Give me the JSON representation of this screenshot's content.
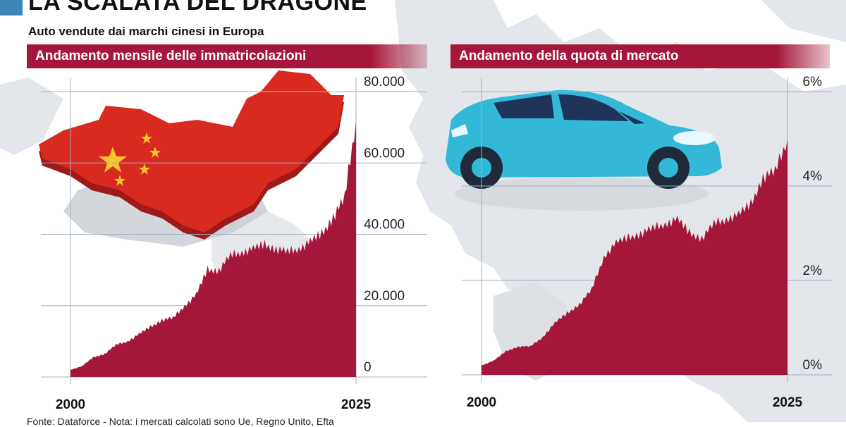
{
  "title": "LA SCALATA DEL DRAGONE",
  "subtitle": "Auto vendute dai marchi cinesi in Europa",
  "source": "Fonte: Dataforce - Nota: i mercati calcolati sono Ue, Regno Unito, Efta",
  "colors": {
    "area": "#a5173a",
    "header": "#a5173a",
    "marker": "#3d87b8",
    "map": "#e3e6ea",
    "car": "#33b8d8"
  },
  "chart_data": [
    {
      "type": "area",
      "title": "Andamento mensile delle immatricolazioni",
      "xlabel": "",
      "ylabel": "",
      "x_ticks": [
        "2000",
        "2025"
      ],
      "y_ticks": [
        "0",
        "20.000",
        "40.000",
        "60.000",
        "80.000"
      ],
      "ylim": [
        0,
        80000
      ],
      "grid": true,
      "illustration": "china-map-icon",
      "series": [
        {
          "x": [
            "2000",
            "2001",
            "2002",
            "2003",
            "2004",
            "2005",
            "2006",
            "2007",
            "2008",
            "2009",
            "2010",
            "2011",
            "2012",
            "2013",
            "2014",
            "2015",
            "2016",
            "2017",
            "2018",
            "2019",
            "2020",
            "2021",
            "2022",
            "2023",
            "2024",
            "2025"
          ],
          "values": [
            2000,
            3000,
            5500,
            6500,
            9000,
            10000,
            12000,
            14000,
            16000,
            16500,
            20000,
            23000,
            30000,
            30000,
            34000,
            35000,
            36000,
            37000,
            36000,
            35000,
            36000,
            38000,
            40000,
            45000,
            50000,
            72000
          ]
        }
      ]
    },
    {
      "type": "area",
      "title": "Andamento della quota di mercato",
      "xlabel": "",
      "ylabel": "",
      "x_ticks": [
        "2000",
        "2025"
      ],
      "y_ticks": [
        "0%",
        "2%",
        "4%",
        "6%"
      ],
      "ylim": [
        0,
        6
      ],
      "grid": true,
      "illustration": "car-icon",
      "series": [
        {
          "x": [
            "2000",
            "2001",
            "2002",
            "2003",
            "2004",
            "2005",
            "2006",
            "2007",
            "2008",
            "2009",
            "2010",
            "2011",
            "2012",
            "2013",
            "2014",
            "2015",
            "2016",
            "2017",
            "2018",
            "2019",
            "2020",
            "2021",
            "2022",
            "2023",
            "2024",
            "2025"
          ],
          "values": [
            0.2,
            0.3,
            0.5,
            0.6,
            0.6,
            0.8,
            1.1,
            1.3,
            1.5,
            1.8,
            2.5,
            2.8,
            2.9,
            3.0,
            3.1,
            3.2,
            3.3,
            3.0,
            2.9,
            3.2,
            3.3,
            3.4,
            3.6,
            4.2,
            4.3,
            5.0
          ]
        }
      ]
    }
  ]
}
